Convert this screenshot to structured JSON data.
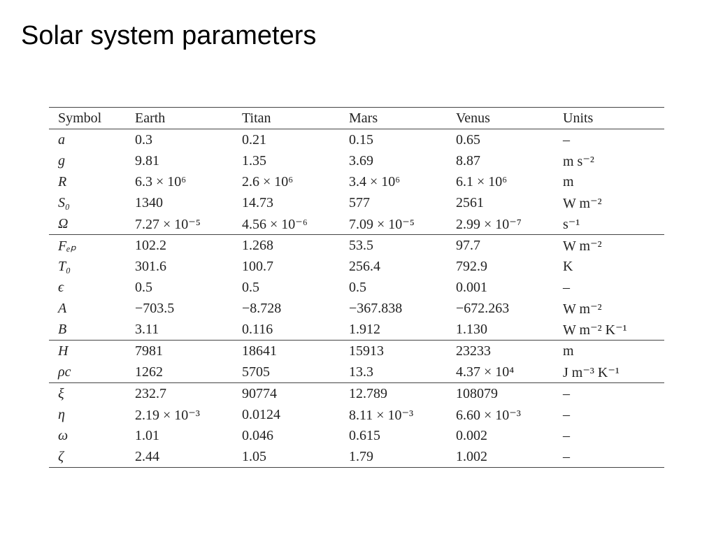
{
  "title": "Solar system parameters",
  "table": {
    "header": [
      "Symbol",
      "Earth",
      "Titan",
      "Mars",
      "Venus",
      "Units"
    ],
    "groups": [
      [
        [
          "a",
          "0.3",
          "0.21",
          "0.15",
          "0.65",
          "–"
        ],
        [
          "g",
          "9.81",
          "1.35",
          "3.69",
          "8.87",
          "m s⁻²"
        ],
        [
          "R",
          "6.3 × 10⁶",
          "2.6 × 10⁶",
          "3.4 × 10⁶",
          "6.1 × 10⁶",
          "m"
        ],
        [
          "S₀",
          "1340",
          "14.73",
          "577",
          "2561",
          "W m⁻²"
        ],
        [
          "Ω",
          "7.27 × 10⁻⁵",
          "4.56 × 10⁻⁶",
          "7.09 × 10⁻⁵",
          "2.99 × 10⁻⁷",
          "s⁻¹"
        ]
      ],
      [
        [
          "Fₑₚ",
          "102.2",
          "1.268",
          "53.5",
          "97.7",
          "W m⁻²"
        ],
        [
          "T₀",
          "301.6",
          "100.7",
          "256.4",
          "792.9",
          "K"
        ],
        [
          "ϵ",
          "0.5",
          "0.5",
          "0.5",
          "0.001",
          "–"
        ],
        [
          "A",
          "−703.5",
          "−8.728",
          "−367.838",
          "−672.263",
          "W m⁻²"
        ],
        [
          "B",
          "3.11",
          "0.116",
          "1.912",
          "1.130",
          "W m⁻² K⁻¹"
        ]
      ],
      [
        [
          "H",
          "7981",
          "18641",
          "15913",
          "23233",
          "m"
        ],
        [
          "ρc",
          "1262",
          "5705",
          "13.3",
          "4.37 × 10⁴",
          "J m⁻³ K⁻¹"
        ]
      ],
      [
        [
          "ξ",
          "232.7",
          "90774",
          "12.789",
          "108079",
          "–"
        ],
        [
          "η",
          "2.19 × 10⁻³",
          "0.0124",
          "8.11 × 10⁻³",
          "6.60 × 10⁻³",
          "–"
        ],
        [
          "ω",
          "1.01",
          "0.046",
          "0.615",
          "0.002",
          "–"
        ],
        [
          "ζ",
          "2.44",
          "1.05",
          "1.79",
          "1.002",
          "–"
        ]
      ]
    ]
  }
}
